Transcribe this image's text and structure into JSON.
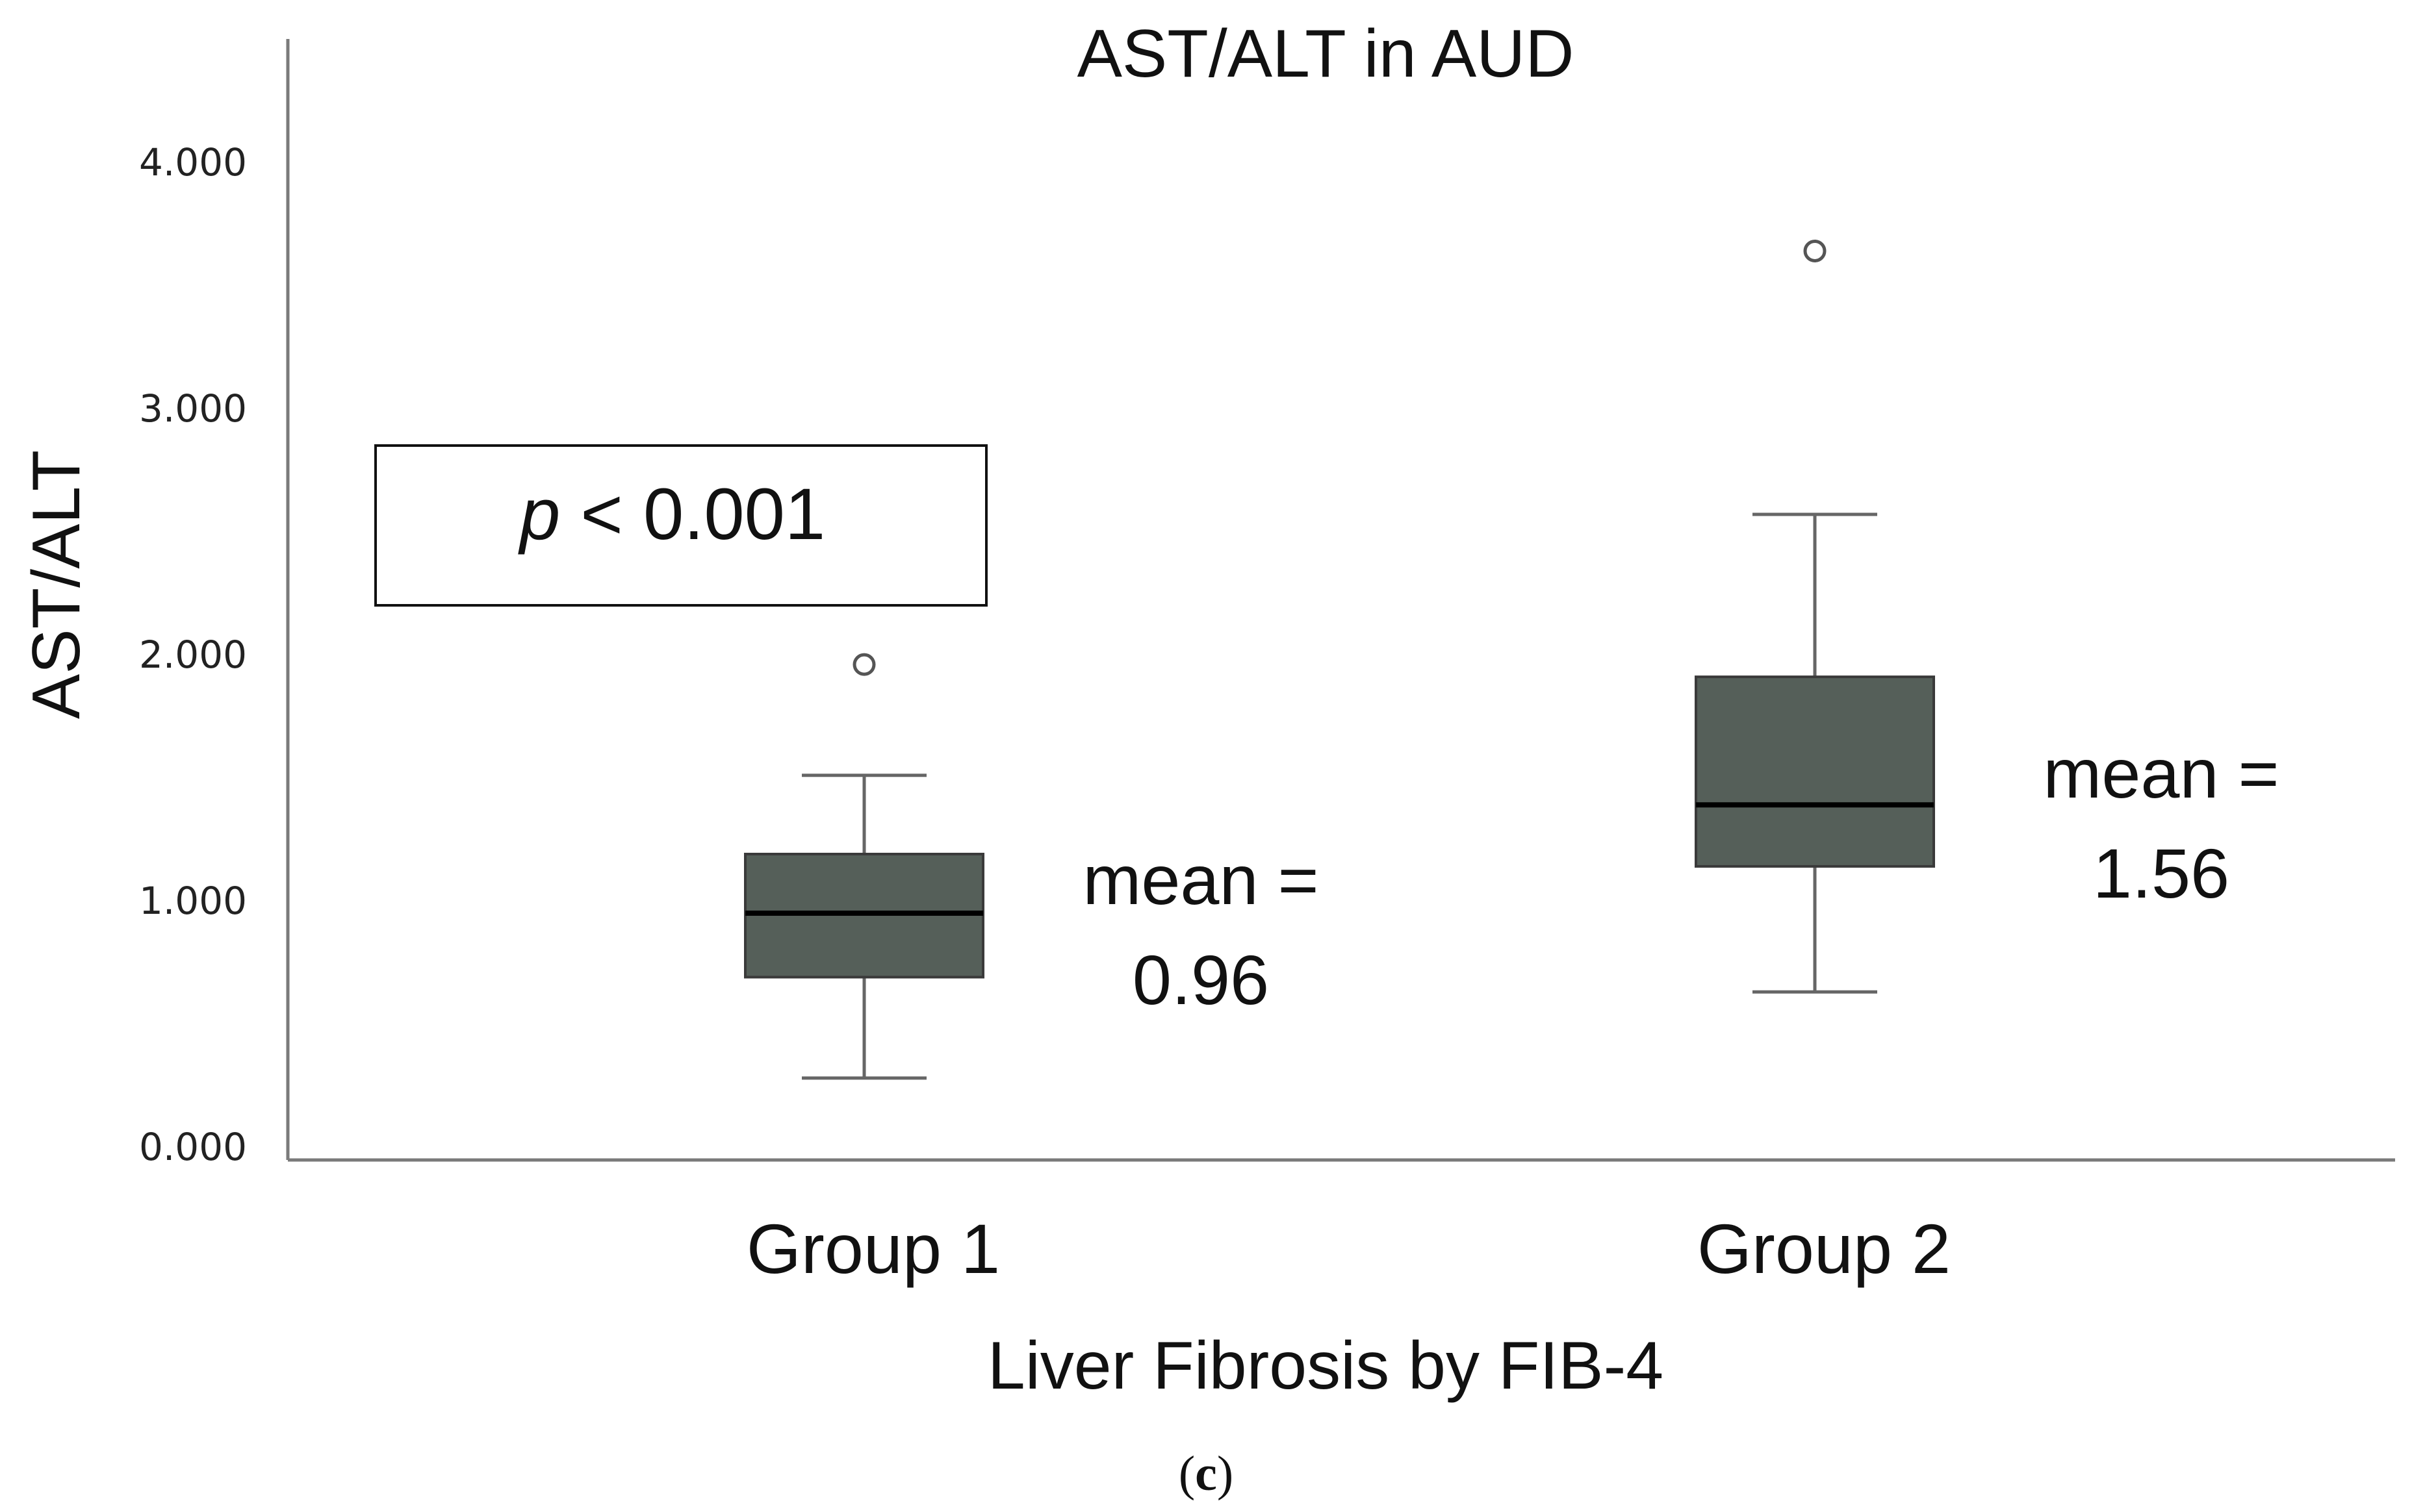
{
  "chart_data": {
    "type": "box",
    "title": "AST/ALT in AUD",
    "xlabel": "Liver Fibrosis by FIB-4",
    "ylabel": "AST/ALT",
    "ylim": [
      0,
      4.5
    ],
    "yticks": [
      {
        "value": 0,
        "label": "0.000"
      },
      {
        "value": 1,
        "label": "1.000"
      },
      {
        "value": 2,
        "label": "2.000"
      },
      {
        "value": 3,
        "label": "3.000"
      },
      {
        "value": 4,
        "label": "4.000"
      }
    ],
    "grid": false,
    "box_color": "#555f59",
    "categories": [
      "Group 1",
      "Group 2"
    ],
    "boxes": [
      {
        "category": "Group 1",
        "whisker_low": 0.28,
        "q1": 0.69,
        "median": 0.95,
        "q3": 1.19,
        "whisker_high": 1.51,
        "outliers": [
          1.96
        ],
        "mean_line1": "mean =",
        "mean_line2": "0.96"
      },
      {
        "category": "Group 2",
        "whisker_low": 0.63,
        "q1": 1.14,
        "median": 1.39,
        "q3": 1.91,
        "whisker_high": 2.57,
        "outliers": [
          3.64
        ],
        "mean_line1": "mean =",
        "mean_line2": "1.56"
      }
    ],
    "pvalue": {
      "symbol": "p",
      "text": " < 0.001"
    },
    "panel_label": {
      "open": "(",
      "letter": "c",
      "close": ")"
    }
  }
}
